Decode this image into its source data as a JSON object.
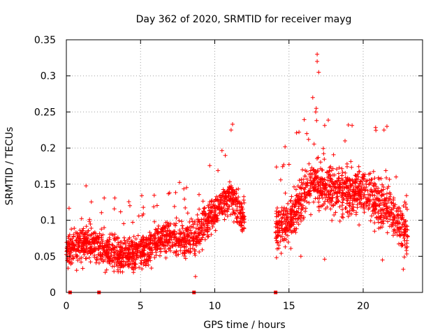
{
  "chart_data": {
    "type": "scatter",
    "title": "Day 362 of 2020, SRMTID for receiver mayg",
    "xlabel": "GPS time / hours",
    "ylabel": "SRMTID / TECUs",
    "xlim": [
      0,
      24
    ],
    "ylim": [
      0,
      0.35
    ],
    "xticks": [
      0,
      5,
      10,
      15,
      20
    ],
    "xtick_labels": [
      "0",
      "5",
      "10",
      "15",
      "20"
    ],
    "yticks": [
      0,
      0.05,
      0.1,
      0.15,
      0.2,
      0.25,
      0.3,
      0.35
    ],
    "ytick_labels": [
      "0",
      "0.05",
      "0.1",
      "0.15",
      "0.2",
      "0.25",
      "0.3",
      "0.35"
    ],
    "grid": true,
    "legend": "none",
    "marker": "+",
    "color": "#ff0000",
    "series": [
      {
        "name": "SRMTID",
        "segments": [
          {
            "x_start": 0.0,
            "x_end": 12.0,
            "trend": [
              [
                0,
                0.06
              ],
              [
                1.5,
                0.07
              ],
              [
                3.5,
                0.05
              ],
              [
                5,
                0.055
              ],
              [
                6.5,
                0.075
              ],
              [
                8.5,
                0.075
              ],
              [
                10,
                0.11
              ],
              [
                11,
                0.135
              ],
              [
                12,
                0.1
              ]
            ],
            "spread": 0.025
          },
          {
            "x_start": 14.1,
            "x_end": 23.0,
            "trend": [
              [
                14.1,
                0.08
              ],
              [
                15,
                0.1
              ],
              [
                16.5,
                0.15
              ],
              [
                18,
                0.14
              ],
              [
                20,
                0.14
              ],
              [
                21.5,
                0.12
              ],
              [
                23,
                0.08
              ]
            ],
            "spread": 0.035
          }
        ],
        "highlights": [
          {
            "x": 8.7,
            "y": 0.022
          },
          {
            "x": 16.9,
            "y": 0.33
          },
          {
            "x": 16.9,
            "y": 0.32
          },
          {
            "x": 17.0,
            "y": 0.305
          },
          {
            "x": 16.6,
            "y": 0.27
          },
          {
            "x": 16.8,
            "y": 0.25
          },
          {
            "x": 11.2,
            "y": 0.233
          },
          {
            "x": 11.1,
            "y": 0.225
          },
          {
            "x": 19.0,
            "y": 0.232
          },
          {
            "x": 21.6,
            "y": 0.23
          },
          {
            "x": 21.4,
            "y": 0.225
          },
          {
            "x": 16.2,
            "y": 0.22
          },
          {
            "x": 15.8,
            "y": 0.05
          },
          {
            "x": 17.4,
            "y": 0.046
          },
          {
            "x": 21.3,
            "y": 0.045
          },
          {
            "x": 22.7,
            "y": 0.032
          }
        ]
      }
    ],
    "baseline_markers_x": [
      0.25,
      2.2,
      8.6,
      14.1
    ]
  }
}
